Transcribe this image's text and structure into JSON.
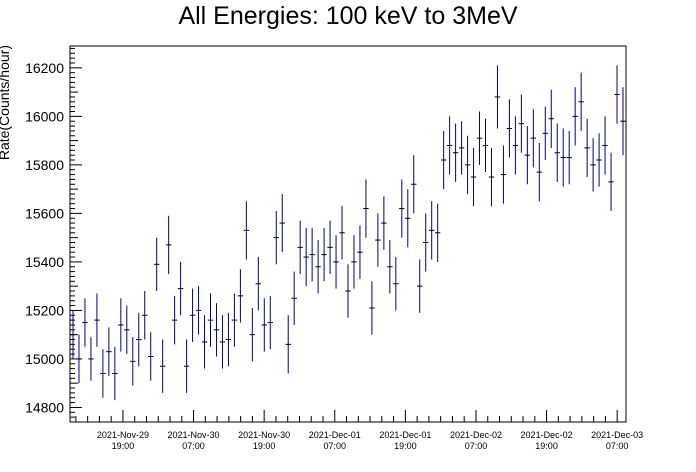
{
  "chart_data": {
    "type": "scatter",
    "title": "All Energies:  100 keV to 3MeV",
    "ylabel": "Rate(Counts/hour)",
    "xlabel": "",
    "ylim": [
      14740,
      16290
    ],
    "yticks": [
      14800,
      15000,
      15200,
      15400,
      15600,
      15800,
      16000,
      16200
    ],
    "grid": false,
    "legend": "none",
    "marker_color": "#000080",
    "x_tick_labels": [
      {
        "date": "2021-Nov-29",
        "time": "19:00"
      },
      {
        "date": "2021-Nov-30",
        "time": "07:00"
      },
      {
        "date": "2021-Nov-30",
        "time": "19:00"
      },
      {
        "date": "2021-Dec-01",
        "time": "07:00"
      },
      {
        "date": "2021-Dec-01",
        "time": "19:00"
      },
      {
        "date": "2021-Dec-02",
        "time": "07:00"
      },
      {
        "date": "2021-Dec-02",
        "time": "19:00"
      },
      {
        "date": "2021-Dec-03",
        "time": "07:00"
      }
    ],
    "x_axis_start": "2021-Nov-29 10:00",
    "x_axis_end": "2021-Dec-03 08:30",
    "points": [
      {
        "y": 15100,
        "err": 100
      },
      {
        "y": 15000,
        "err": 100
      },
      {
        "y": 15150,
        "err": 100
      },
      {
        "y": 15000,
        "err": 90
      },
      {
        "y": 15160,
        "err": 110
      },
      {
        "y": 14940,
        "err": 100
      },
      {
        "y": 15030,
        "err": 100
      },
      {
        "y": 14940,
        "err": 110
      },
      {
        "y": 15140,
        "err": 110
      },
      {
        "y": 15120,
        "err": 100
      },
      {
        "y": 14990,
        "err": 100
      },
      {
        "y": 15080,
        "err": 110
      },
      {
        "y": 15180,
        "err": 100
      },
      {
        "y": 15010,
        "err": 100
      },
      {
        "y": 15390,
        "err": 110
      },
      {
        "y": 14970,
        "err": 110
      },
      {
        "y": 15470,
        "err": 120
      },
      {
        "y": 15160,
        "err": 100
      },
      {
        "y": 15290,
        "err": 110
      },
      {
        "y": 14970,
        "err": 110
      },
      {
        "y": 15180,
        "err": 110
      },
      {
        "y": 15200,
        "err": 100
      },
      {
        "y": 15070,
        "err": 110
      },
      {
        "y": 15160,
        "err": 110
      },
      {
        "y": 15120,
        "err": 110
      },
      {
        "y": 15070,
        "err": 110
      },
      {
        "y": 15080,
        "err": 110
      },
      {
        "y": 15160,
        "err": 110
      },
      {
        "y": 15260,
        "err": 110
      },
      {
        "y": 15530,
        "err": 120
      },
      {
        "y": 15100,
        "err": 110
      },
      {
        "y": 15310,
        "err": 110
      },
      {
        "y": 15140,
        "err": 110
      },
      {
        "y": 15150,
        "err": 110
      },
      {
        "y": 15500,
        "err": 110
      },
      {
        "y": 15560,
        "err": 120
      },
      {
        "y": 15060,
        "err": 120
      },
      {
        "y": 15250,
        "err": 110
      },
      {
        "y": 15460,
        "err": 110
      },
      {
        "y": 15420,
        "err": 120
      },
      {
        "y": 15430,
        "err": 110
      },
      {
        "y": 15380,
        "err": 110
      },
      {
        "y": 15430,
        "err": 110
      },
      {
        "y": 15460,
        "err": 110
      },
      {
        "y": 15400,
        "err": 110
      },
      {
        "y": 15520,
        "err": 110
      },
      {
        "y": 15280,
        "err": 110
      },
      {
        "y": 15400,
        "err": 110
      },
      {
        "y": 15440,
        "err": 110
      },
      {
        "y": 15620,
        "err": 120
      },
      {
        "y": 15210,
        "err": 110
      },
      {
        "y": 15490,
        "err": 110
      },
      {
        "y": 15560,
        "err": 110
      },
      {
        "y": 15380,
        "err": 110
      },
      {
        "y": 15310,
        "err": 110
      },
      {
        "y": 15620,
        "err": 120
      },
      {
        "y": 15580,
        "err": 120
      },
      {
        "y": 15720,
        "err": 120
      },
      {
        "y": 15300,
        "err": 110
      },
      {
        "y": 15480,
        "err": 120
      },
      {
        "y": 15530,
        "err": 120
      },
      {
        "y": 15520,
        "err": 120
      },
      {
        "y": 15820,
        "err": 120
      },
      {
        "y": 15880,
        "err": 120
      },
      {
        "y": 15850,
        "err": 120
      },
      {
        "y": 15870,
        "err": 110
      },
      {
        "y": 15800,
        "err": 120
      },
      {
        "y": 15750,
        "err": 120
      },
      {
        "y": 15910,
        "err": 110
      },
      {
        "y": 15880,
        "err": 110
      },
      {
        "y": 15750,
        "err": 120
      },
      {
        "y": 16080,
        "err": 130
      },
      {
        "y": 15760,
        "err": 120
      },
      {
        "y": 15950,
        "err": 120
      },
      {
        "y": 15880,
        "err": 120
      },
      {
        "y": 15970,
        "err": 120
      },
      {
        "y": 15840,
        "err": 120
      },
      {
        "y": 15910,
        "err": 120
      },
      {
        "y": 15770,
        "err": 120
      },
      {
        "y": 15930,
        "err": 110
      },
      {
        "y": 15990,
        "err": 120
      },
      {
        "y": 15850,
        "err": 120
      },
      {
        "y": 15830,
        "err": 120
      },
      {
        "y": 15830,
        "err": 110
      },
      {
        "y": 16000,
        "err": 120
      },
      {
        "y": 16060,
        "err": 120
      },
      {
        "y": 15870,
        "err": 120
      },
      {
        "y": 15800,
        "err": 110
      },
      {
        "y": 15820,
        "err": 110
      },
      {
        "y": 15880,
        "err": 120
      },
      {
        "y": 15730,
        "err": 120
      },
      {
        "y": 16090,
        "err": 120
      },
      {
        "y": 15980,
        "err": 140
      }
    ]
  }
}
